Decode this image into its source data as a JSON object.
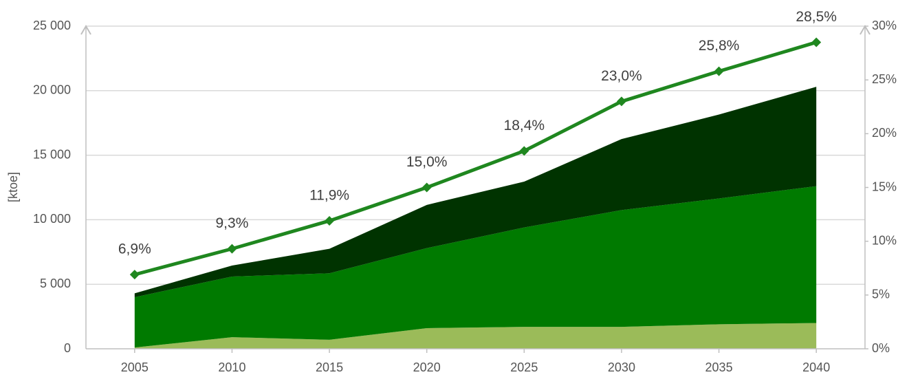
{
  "chart_data": {
    "type": "stacked_area_line",
    "y_label": "[ktoe]",
    "x": [
      2005,
      2010,
      2015,
      2020,
      2025,
      2030,
      2035,
      2040
    ],
    "xlim": [
      2002.5,
      2042.5
    ],
    "xticks": [
      2005,
      2010,
      2015,
      2020,
      2025,
      2030,
      2035,
      2040
    ],
    "series": [
      {
        "color": "#9bbb59",
        "values": [
          100,
          900,
          700,
          1600,
          1700,
          1700,
          1900,
          2000
        ]
      },
      {
        "color": "#007a00",
        "values": [
          3900,
          4700,
          5150,
          6200,
          7700,
          9050,
          9750,
          10600
        ]
      },
      {
        "color": "#003300",
        "values": [
          300,
          850,
          1900,
          3350,
          3550,
          5500,
          6500,
          7700
        ]
      },
      {
        "type": "line",
        "axis": "y2",
        "color": "#1f871f",
        "values": [
          6.9,
          9.3,
          11.9,
          15.0,
          18.4,
          23.0,
          25.8,
          28.5
        ],
        "value_labels": [
          "6,9%",
          "9,3%",
          "11,9%",
          "15,0%",
          "18,4%",
          "23,0%",
          "25,8%",
          "28,5%"
        ]
      }
    ],
    "ylim": [
      0,
      25000
    ],
    "yticks": [
      {
        "value": 0,
        "label": "0"
      },
      {
        "value": 5000,
        "label": "5 000"
      },
      {
        "value": 10000,
        "label": "10 000"
      },
      {
        "value": 15000,
        "label": "15 000"
      },
      {
        "value": 20000,
        "label": "20 000"
      },
      {
        "value": 25000,
        "label": "25 000"
      }
    ],
    "y2lim": [
      0,
      30
    ],
    "y2ticks": [
      {
        "value": 0,
        "label": "0%"
      },
      {
        "value": 5,
        "label": "5%"
      },
      {
        "value": 10,
        "label": "10%"
      },
      {
        "value": 15,
        "label": "15%"
      },
      {
        "value": 20,
        "label": "20%"
      },
      {
        "value": 25,
        "label": "25%"
      },
      {
        "value": 30,
        "label": "30%"
      }
    ],
    "grid": true
  }
}
